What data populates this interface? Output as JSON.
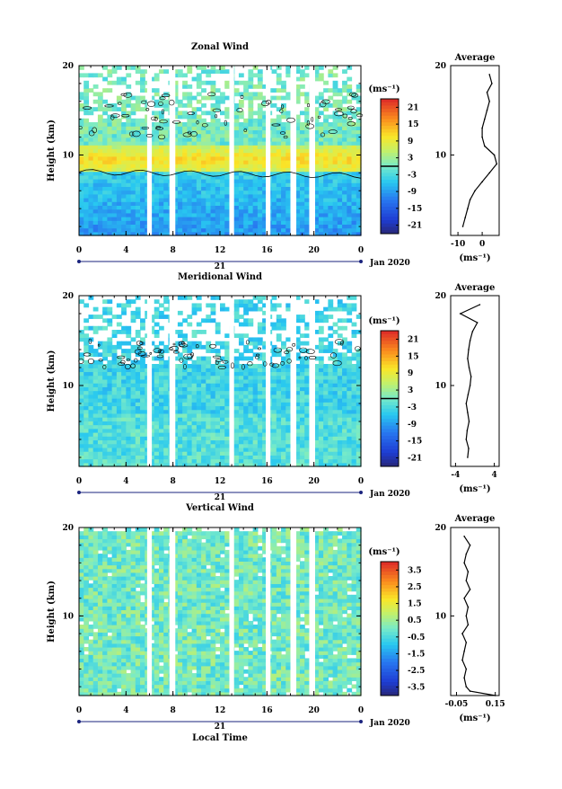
{
  "chart_data": [
    {
      "type": "heatmap",
      "title": "Zonal Wind",
      "ylabel": "Height (km)",
      "xlabel": "",
      "xlim": [
        0,
        24
      ],
      "ylim": [
        1,
        20
      ],
      "x_ticks": [
        "0",
        "4",
        "8",
        "12",
        "16",
        "20",
        "0"
      ],
      "y_ticks": [
        "10",
        "20"
      ],
      "date_day": "21",
      "date_month": "Jan 2020",
      "colorbar_unit": "(ms⁻¹)",
      "colorbar_range": [
        -24,
        24
      ],
      "colorbar_ticks": [
        "21",
        "15",
        "9",
        "3",
        "-3",
        "-9",
        "-15",
        "-21"
      ],
      "data_gaps_hours": [
        [
          5.8,
          6.2
        ],
        [
          7.7,
          8.2
        ],
        [
          12.8,
          13.2
        ],
        [
          15.9,
          16.3
        ],
        [
          18.0,
          18.5
        ],
        [
          19.6,
          20.1
        ]
      ],
      "average_profile": {
        "title": "Average",
        "xlabel": "(ms⁻¹)",
        "x_ticks": [
          "-10",
          "0"
        ],
        "xlim": [
          -13,
          7
        ],
        "heights": [
          2,
          3,
          4,
          5,
          6,
          7,
          8,
          9,
          10,
          11,
          12,
          13,
          14,
          15,
          16,
          17,
          18,
          19
        ],
        "values": [
          -8,
          -7,
          -6,
          -5,
          -3,
          0,
          3,
          6,
          5,
          1,
          0,
          0,
          1,
          2,
          3,
          2,
          4,
          3
        ]
      }
    },
    {
      "type": "heatmap",
      "title": "Meridional Wind",
      "ylabel": "Height (km)",
      "xlabel": "",
      "xlim": [
        0,
        24
      ],
      "ylim": [
        1,
        20
      ],
      "x_ticks": [
        "0",
        "4",
        "8",
        "12",
        "16",
        "20",
        "0"
      ],
      "y_ticks": [
        "10",
        "20"
      ],
      "date_day": "21",
      "date_month": "Jan 2020",
      "colorbar_unit": "(ms⁻¹)",
      "colorbar_range": [
        -24,
        24
      ],
      "colorbar_ticks": [
        "21",
        "15",
        "9",
        "3",
        "-3",
        "-9",
        "-15",
        "-21"
      ],
      "data_gaps_hours": [
        [
          5.8,
          6.2
        ],
        [
          7.7,
          8.2
        ],
        [
          12.8,
          13.2
        ],
        [
          15.9,
          16.3
        ],
        [
          18.0,
          18.5
        ],
        [
          19.6,
          20.1
        ]
      ],
      "average_profile": {
        "title": "Average",
        "xlabel": "(ms⁻¹)",
        "x_ticks": [
          "-4",
          "4"
        ],
        "xlim": [
          -5,
          5
        ],
        "heights": [
          2,
          3,
          4,
          5,
          6,
          7,
          8,
          9,
          10,
          11,
          12,
          13,
          14,
          15,
          16,
          17,
          18,
          19
        ],
        "values": [
          -1.5,
          -1.3,
          -1.8,
          -1.6,
          -1.2,
          -1.5,
          -1.8,
          -1.4,
          -1.0,
          -0.8,
          -1.2,
          -1.5,
          -1.3,
          -1.0,
          -0.5,
          0.5,
          -3.0,
          1.0
        ]
      }
    },
    {
      "type": "heatmap",
      "title": "Vertical Wind",
      "ylabel": "Height (km)",
      "xlabel": "Local Time",
      "xlim": [
        0,
        24
      ],
      "ylim": [
        1,
        20
      ],
      "x_ticks": [
        "0",
        "4",
        "8",
        "12",
        "16",
        "20",
        "0"
      ],
      "y_ticks": [
        "10",
        "20"
      ],
      "date_day": "21",
      "date_month": "Jan 2020",
      "colorbar_unit": "(ms⁻¹)",
      "colorbar_range": [
        -4,
        4
      ],
      "colorbar_ticks": [
        "3.5",
        "2.5",
        "1.5",
        "0.5",
        "-0.5",
        "-1.5",
        "-2.5",
        "-3.5"
      ],
      "data_gaps_hours": [
        [
          5.8,
          6.2
        ],
        [
          7.7,
          8.2
        ],
        [
          12.8,
          13.2
        ],
        [
          15.9,
          16.3
        ],
        [
          18.0,
          18.5
        ],
        [
          19.6,
          20.1
        ]
      ],
      "average_profile": {
        "title": "Average",
        "xlabel": "(ms⁻¹)",
        "x_ticks": [
          "-0.05",
          "0.15"
        ],
        "xlim": [
          -0.08,
          0.17
        ],
        "heights": [
          1.0,
          1.5,
          2,
          3,
          4,
          5,
          6,
          7,
          8,
          9,
          10,
          11,
          12,
          13,
          14,
          15,
          16,
          17,
          18,
          19
        ],
        "values": [
          0.15,
          0.02,
          0.0,
          -0.01,
          0.0,
          -0.02,
          -0.01,
          0.0,
          -0.02,
          0.01,
          0.0,
          0.01,
          -0.01,
          0.02,
          0.0,
          0.01,
          -0.01,
          0.0,
          0.02,
          -0.01
        ]
      }
    }
  ]
}
